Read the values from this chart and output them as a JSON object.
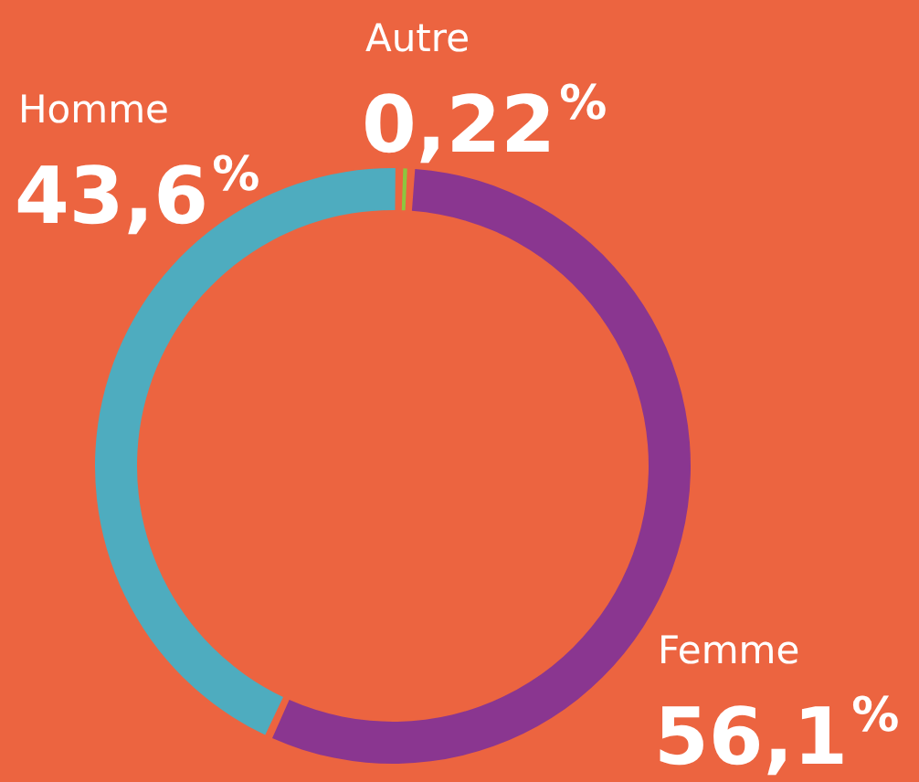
{
  "chart_data": {
    "type": "donut",
    "categories": [
      "Autre",
      "Femme",
      "Homme"
    ],
    "values": [
      0.22,
      56.1,
      43.6
    ],
    "colors": [
      "#8dc63f",
      "#8a3690",
      "#4eacbf"
    ],
    "value_labels": [
      "0,22$^{%}$",
      "56,1$^{%}$",
      "43,6$^{%}$"
    ]
  }
}
